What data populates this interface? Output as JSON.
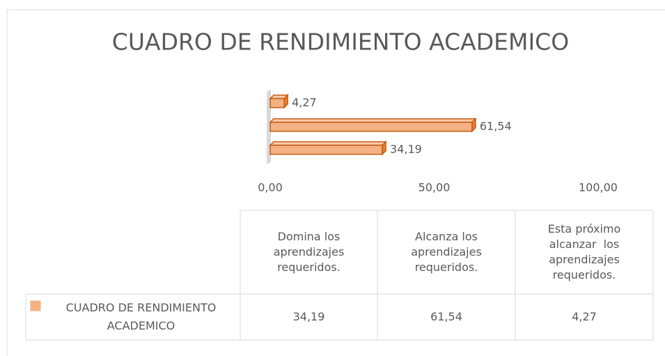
{
  "chart_data": {
    "type": "bar",
    "orientation": "horizontal",
    "title": "CUADRO DE RENDIMIENTO ACADEMICO",
    "categories": [
      "Domina los aprendizajes requeridos.",
      "Alcanza los aprendizajes requeridos.",
      "Esta próximo alcanzar  los aprendizajes requeridos."
    ],
    "series": [
      {
        "name": "CUADRO DE RENDIMIENTO ACADEMICO",
        "color": "#f4b183",
        "values": [
          34.19,
          61.54,
          4.27
        ],
        "value_labels": [
          "34,19",
          "61,54",
          "4,27"
        ]
      }
    ],
    "xlim": [
      0,
      100
    ],
    "xticks": [
      {
        "value": 0,
        "label": "0,00"
      },
      {
        "value": 50,
        "label": "50,00"
      },
      {
        "value": 100,
        "label": "100,00"
      }
    ],
    "data_table": true
  }
}
